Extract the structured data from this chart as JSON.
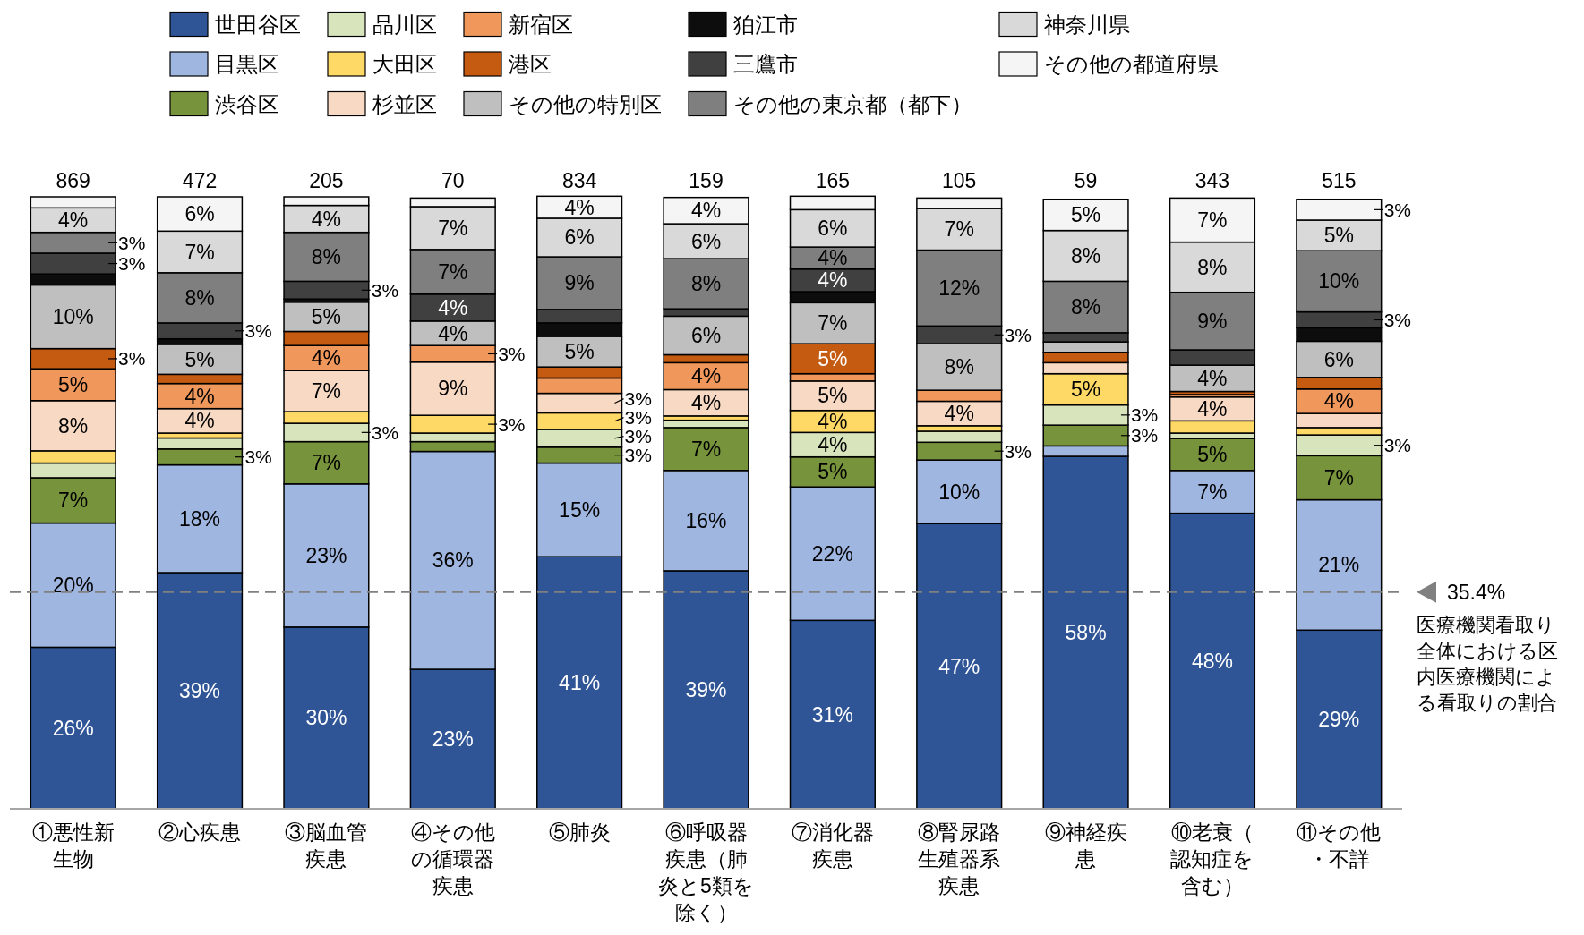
{
  "chart_data": {
    "type": "bar",
    "stacked": true,
    "legend": "top",
    "tick_labels": "x",
    "ylim": [
      0,
      100
    ],
    "categories": [
      "①悪性新生物",
      "②心疾患",
      "③脳血管疾患",
      "④その他の循環器疾患",
      "⑤肺炎",
      "⑥呼吸器疾患（肺炎と5類を除く）",
      "⑦消化器疾患",
      "⑧腎尿路生殖器系疾患",
      "⑨神経疾患",
      "⑩老衰（認知症を含む）",
      "⑪その他・不詳"
    ],
    "series": [
      {
        "name": "世田谷区",
        "color": "#2f5597",
        "values": [
          26.4,
          38.6,
          29.7,
          22.8,
          41.2,
          38.9,
          30.8,
          46.6,
          57.6,
          48.3,
          29.2
        ],
        "value_labels": [
          "26%",
          "39%",
          "30%",
          "23%",
          "41%",
          "39%",
          "31%",
          "47%",
          "58%",
          "48%",
          "29%"
        ]
      },
      {
        "name": "目黒区",
        "color": "#9fb6e0",
        "values": [
          20.3,
          17.6,
          23.4,
          35.6,
          15.3,
          16.4,
          21.8,
          10.4,
          1.7,
          7.0,
          21.3
        ],
        "value_labels": [
          "20%",
          "18%",
          "23%",
          "36%",
          "15%",
          "16%",
          "22%",
          "10%",
          null,
          "7%",
          "21%"
        ]
      },
      {
        "name": "渋谷区",
        "color": "#77933c",
        "values": [
          7.4,
          2.6,
          6.9,
          1.6,
          2.6,
          7.0,
          4.9,
          2.9,
          3.4,
          5.2,
          7.2
        ],
        "value_labels": [
          "7%",
          "3%",
          "7%",
          null,
          "3%",
          "7%",
          "5%",
          "3%",
          "3%",
          "5%",
          "7%"
        ]
      },
      {
        "name": "品川区",
        "color": "#d8e4bc",
        "values": [
          2.4,
          1.8,
          3.0,
          1.4,
          2.9,
          1.2,
          4.0,
          1.8,
          3.3,
          0.9,
          3.4
        ],
        "value_labels": [
          null,
          null,
          "3%",
          null,
          "3%",
          null,
          "4%",
          null,
          "3%",
          null,
          "3%"
        ]
      },
      {
        "name": "大田区",
        "color": "#ffd966",
        "values": [
          2.0,
          0.8,
          1.9,
          2.9,
          2.7,
          0.7,
          3.6,
          0.9,
          5.1,
          2.0,
          1.2
        ],
        "value_labels": [
          null,
          null,
          null,
          "3%",
          "3%",
          null,
          "4%",
          null,
          "5%",
          null,
          null
        ]
      },
      {
        "name": "杉並区",
        "color": "#f8dac4",
        "values": [
          8.2,
          4.0,
          6.7,
          8.7,
          3.2,
          4.3,
          4.8,
          4.0,
          1.8,
          3.9,
          2.3
        ],
        "value_labels": [
          "8%",
          "4%",
          "7%",
          "9%",
          "3%",
          "4%",
          "5%",
          "4%",
          null,
          "4%",
          null
        ]
      },
      {
        "name": "新宿区",
        "color": "#f0975b",
        "values": [
          5.2,
          4.1,
          4.1,
          2.7,
          2.5,
          4.4,
          1.2,
          1.8,
          0,
          0.4,
          4.0
        ],
        "value_labels": [
          "5%",
          "4%",
          "4%",
          "3%",
          null,
          "4%",
          null,
          null,
          null,
          null,
          "4%"
        ]
      },
      {
        "name": "港区",
        "color": "#c55a11",
        "values": [
          3.3,
          1.5,
          2.3,
          0,
          1.8,
          1.3,
          4.9,
          0,
          1.7,
          0.5,
          1.9
        ],
        "value_labels": [
          "3%",
          null,
          null,
          null,
          null,
          null,
          "5%",
          null,
          null,
          null,
          null
        ]
      },
      {
        "name": "その他の特別区",
        "color": "#bfbfbf",
        "values": [
          10.4,
          4.9,
          4.8,
          4.0,
          5.0,
          6.3,
          6.7,
          7.6,
          1.7,
          4.3,
          5.9
        ],
        "value_labels": [
          "10%",
          "5%",
          "5%",
          "4%",
          "5%",
          "6%",
          "7%",
          "8%",
          null,
          "4%",
          "6%"
        ]
      },
      {
        "name": "狛江市",
        "color": "#0d0d0d",
        "values": [
          1.8,
          0.9,
          0.5,
          0,
          2.2,
          0,
          1.8,
          0,
          0,
          0,
          2.2
        ]
      },
      {
        "name": "三鷹市",
        "color": "#404040",
        "values": [
          3.4,
          2.6,
          2.9,
          4.4,
          2.2,
          1.2,
          3.7,
          2.9,
          1.5,
          2.5,
          2.6
        ],
        "value_labels": [
          "3%",
          "3%",
          "3%",
          "4%",
          null,
          null,
          "4%",
          "3%",
          null,
          null,
          "3%"
        ]
      },
      {
        "name": "その他の東京都（都下）",
        "color": "#7f7f7f",
        "values": [
          3.4,
          8.2,
          8.0,
          7.3,
          8.6,
          8.2,
          3.6,
          12.4,
          8.4,
          9.4,
          10.0
        ],
        "value_labels": [
          "3%",
          "8%",
          "8%",
          "7%",
          "9%",
          "8%",
          "4%",
          "12%",
          "8%",
          "9%",
          "10%"
        ]
      },
      {
        "name": "神奈川県",
        "color": "#d9d9d9",
        "values": [
          4.0,
          6.8,
          4.4,
          7.0,
          6.3,
          5.7,
          6.1,
          6.8,
          8.3,
          8.2,
          5.0
        ],
        "value_labels": [
          "4%",
          "7%",
          "4%",
          "7%",
          "6%",
          "6%",
          "6%",
          "7%",
          "8%",
          "8%",
          "5%"
        ]
      },
      {
        "name": "その他の都道府県",
        "color": "#f5f5f5",
        "values": [
          1.8,
          5.6,
          1.4,
          1.4,
          3.6,
          4.3,
          2.2,
          1.7,
          5.1,
          7.2,
          3.4
        ],
        "value_labels": [
          null,
          "6%",
          null,
          null,
          "4%",
          "4%",
          null,
          null,
          "5%",
          "7%",
          "3%"
        ]
      }
    ],
    "ref_lines": [
      {
        "axis": "y",
        "value": 35.4,
        "label": "35.4%",
        "color": "#808080",
        "line_style": "dashed"
      }
    ],
    "annotations": [
      "医療機関看取り全体における区内医療機関による看取りの割合",
      {
        "text": "869",
        "x": "①悪性新生物",
        "y": 100
      },
      {
        "text": "472",
        "x": "②心疾患",
        "y": 100
      },
      {
        "text": "205",
        "x": "③脳血管疾患",
        "y": 100
      },
      {
        "text": "70",
        "x": "④その他の循環器疾患",
        "y": 100
      },
      {
        "text": "834",
        "x": "⑤肺炎",
        "y": 100
      },
      {
        "text": "159",
        "x": "⑥呼吸器疾患（肺炎と5類を除く）",
        "y": 100
      },
      {
        "text": "165",
        "x": "⑦消化器疾患",
        "y": 100
      },
      {
        "text": "105",
        "x": "⑧腎尿路生殖器系疾患",
        "y": 100
      },
      {
        "text": "59",
        "x": "⑨神経疾患",
        "y": 100
      },
      {
        "text": "343",
        "x": "⑩老衰（認知症を含む）",
        "y": 100
      },
      {
        "text": "515",
        "x": "⑪その他・不詳",
        "y": 100
      }
    ]
  }
}
